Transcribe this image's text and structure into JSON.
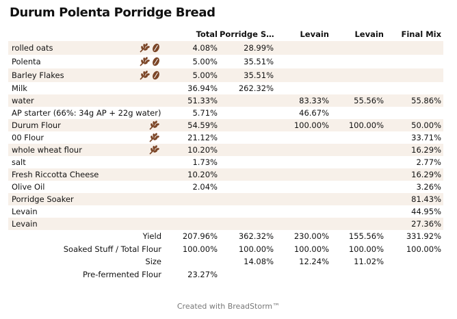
{
  "title": "Durum Polenta Porridge Bread",
  "columns": [
    "Total",
    "Porridge S…",
    "Levain",
    "Levain",
    "Final Mix"
  ],
  "rows": [
    {
      "name": "rolled oats",
      "icons": [
        "wheat-icon",
        "grain-icon"
      ],
      "values": [
        "4.08%",
        "28.99%",
        "",
        "",
        ""
      ]
    },
    {
      "name": "Polenta",
      "icons": [
        "wheat-icon",
        "grain-icon"
      ],
      "values": [
        "5.00%",
        "35.51%",
        "",
        "",
        ""
      ]
    },
    {
      "name": "Barley Flakes",
      "icons": [
        "wheat-icon",
        "grain-icon"
      ],
      "values": [
        "5.00%",
        "35.51%",
        "",
        "",
        ""
      ]
    },
    {
      "name": "Milk",
      "icons": [],
      "values": [
        "36.94%",
        "262.32%",
        "",
        "",
        ""
      ]
    },
    {
      "name": "water",
      "icons": [],
      "values": [
        "51.33%",
        "",
        "83.33%",
        "55.56%",
        "55.86%"
      ]
    },
    {
      "name": "AP starter (66%: 34g AP + 22g water)",
      "icons": [],
      "values": [
        "5.71%",
        "",
        "46.67%",
        "",
        ""
      ]
    },
    {
      "name": "Durum Flour",
      "icons": [
        "wheat-icon"
      ],
      "values": [
        "54.59%",
        "",
        "100.00%",
        "100.00%",
        "50.00%"
      ]
    },
    {
      "name": "00 Flour",
      "icons": [
        "wheat-icon"
      ],
      "values": [
        "21.12%",
        "",
        "",
        "",
        "33.71%"
      ]
    },
    {
      "name": "whole wheat flour",
      "icons": [
        "wheat-icon"
      ],
      "values": [
        "10.20%",
        "",
        "",
        "",
        "16.29%"
      ]
    },
    {
      "name": "salt",
      "icons": [],
      "values": [
        "1.73%",
        "",
        "",
        "",
        "2.77%"
      ]
    },
    {
      "name": "Fresh Riccotta Cheese",
      "icons": [],
      "values": [
        "10.20%",
        "",
        "",
        "",
        "16.29%"
      ]
    },
    {
      "name": "Olive Oil",
      "icons": [],
      "values": [
        "2.04%",
        "",
        "",
        "",
        "3.26%"
      ]
    },
    {
      "name": "Porridge Soaker",
      "icons": [],
      "values": [
        "",
        "",
        "",
        "",
        "81.43%"
      ]
    },
    {
      "name": "Levain",
      "icons": [],
      "values": [
        "",
        "",
        "",
        "",
        "44.95%"
      ]
    },
    {
      "name": "Levain",
      "icons": [],
      "values": [
        "",
        "",
        "",
        "",
        "27.36%"
      ]
    }
  ],
  "summary": [
    {
      "label": "Yield",
      "values": [
        "207.96%",
        "362.32%",
        "230.00%",
        "155.56%",
        "331.92%"
      ]
    },
    {
      "label": "Soaked Stuff / Total Flour",
      "values": [
        "100.00%",
        "100.00%",
        "100.00%",
        "100.00%",
        "100.00%"
      ]
    },
    {
      "label": "Size",
      "values": [
        "",
        "14.08%",
        "12.24%",
        "11.02%",
        ""
      ]
    },
    {
      "label": "Pre-fermented Flour",
      "values": [
        "23.27%",
        "",
        "",
        "",
        ""
      ]
    }
  ],
  "footer": "Created with BreadStorm™",
  "colors": {
    "shade": "#f7f0e9",
    "icon": "#7b4526"
  }
}
